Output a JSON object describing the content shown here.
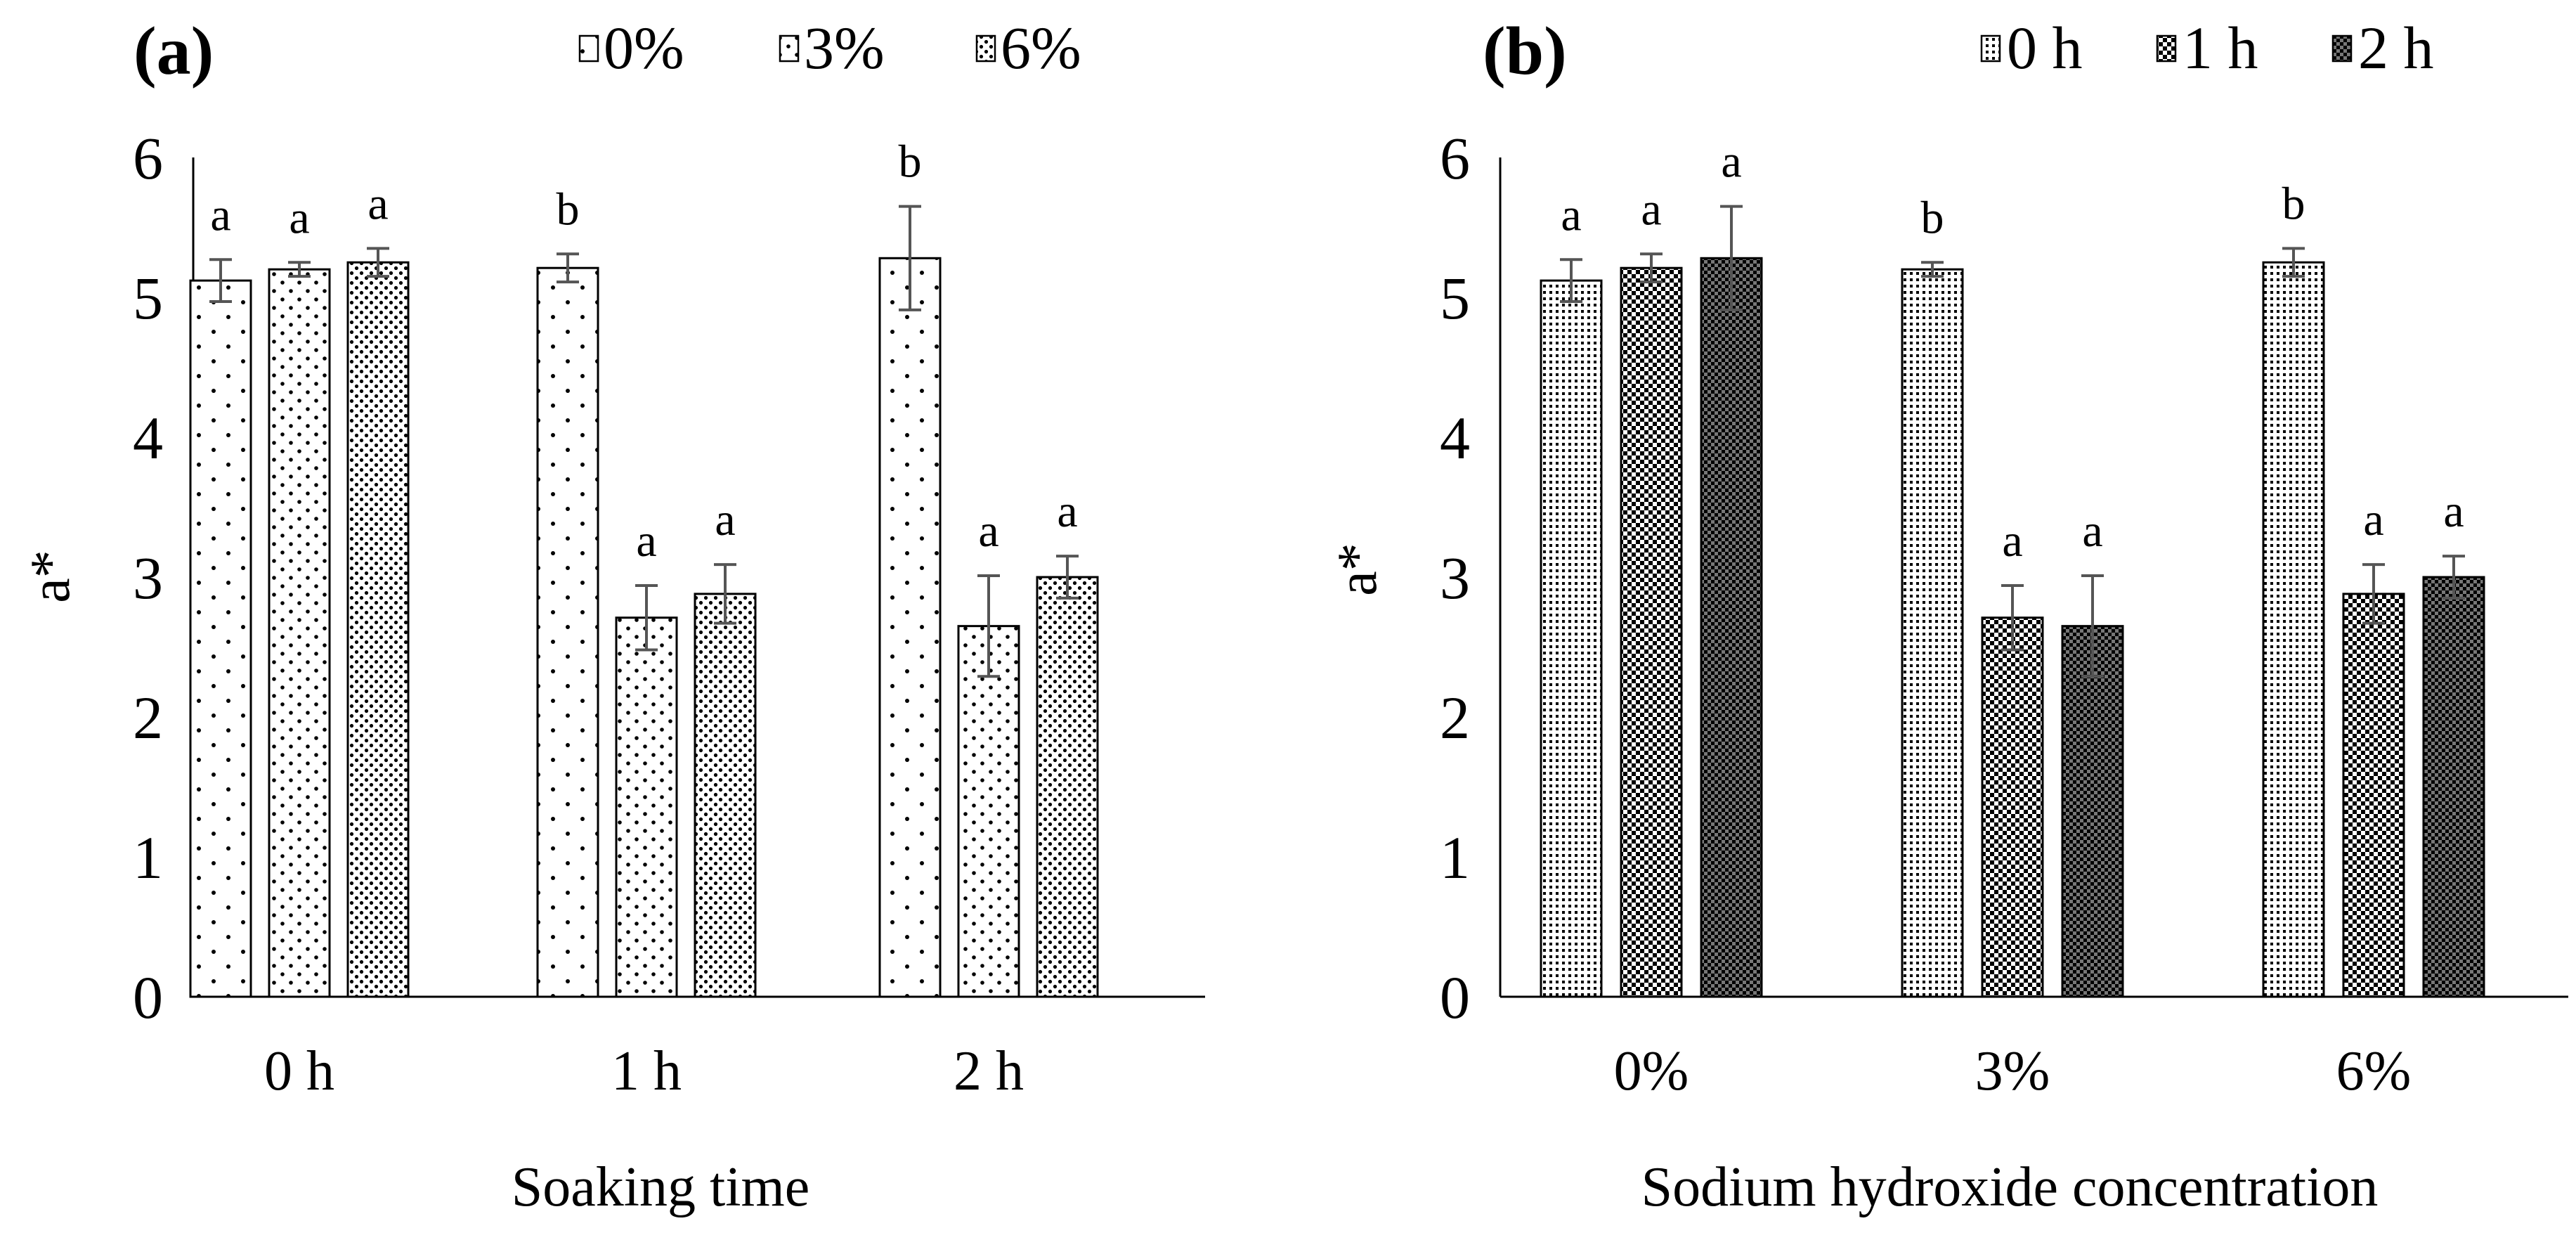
{
  "colors": {
    "background": "#ffffff",
    "bar_outline": "#000000",
    "error_bar": "#555555",
    "axis": "#000000"
  },
  "chart_data": [
    {
      "type": "bar",
      "panel_label": "(a)",
      "title": "",
      "xlabel": "Soaking time",
      "ylabel": "a*",
      "ylim": [
        0,
        6
      ],
      "yticks": [
        "0",
        "1",
        "2",
        "3",
        "4",
        "5",
        "6"
      ],
      "categories": [
        "0 h",
        "1 h",
        "2 h"
      ],
      "legend_position": "top",
      "series": [
        {
          "name": "0%",
          "pattern": "sparse-dots",
          "values": [
            5.12,
            5.21,
            5.28
          ],
          "errors": [
            0.15,
            0.1,
            0.37
          ],
          "letters": [
            "a",
            "b",
            "b"
          ]
        },
        {
          "name": "3%",
          "pattern": "medium-dots",
          "values": [
            5.2,
            2.71,
            2.65
          ],
          "errors": [
            0.05,
            0.23,
            0.36
          ],
          "letters": [
            "a",
            "a",
            "a"
          ]
        },
        {
          "name": "6%",
          "pattern": "dense-dots",
          "values": [
            5.25,
            2.88,
            3.0
          ],
          "errors": [
            0.1,
            0.21,
            0.15
          ],
          "letters": [
            "a",
            "a",
            "a"
          ]
        }
      ]
    },
    {
      "type": "bar",
      "panel_label": "(b)",
      "title": "",
      "xlabel": "Sodium hydroxide concentration",
      "ylabel": "a*",
      "ylim": [
        0,
        6
      ],
      "yticks": [
        "0",
        "1",
        "2",
        "3",
        "4",
        "5",
        "6"
      ],
      "categories": [
        "0%",
        "3%",
        "6%"
      ],
      "legend_position": "top",
      "series": [
        {
          "name": "0 h",
          "pattern": "fine-dots",
          "values": [
            5.12,
            5.2,
            5.25
          ],
          "errors": [
            0.15,
            0.05,
            0.1
          ],
          "letters": [
            "a",
            "b",
            "b"
          ]
        },
        {
          "name": "1 h",
          "pattern": "checker",
          "values": [
            5.21,
            2.71,
            2.88
          ],
          "errors": [
            0.1,
            0.23,
            0.21
          ],
          "letters": [
            "a",
            "a",
            "a"
          ]
        },
        {
          "name": "2 h",
          "pattern": "dense-checker",
          "values": [
            5.28,
            2.65,
            3.0
          ],
          "errors": [
            0.37,
            0.36,
            0.15
          ],
          "letters": [
            "a",
            "a",
            "a"
          ]
        }
      ]
    }
  ]
}
